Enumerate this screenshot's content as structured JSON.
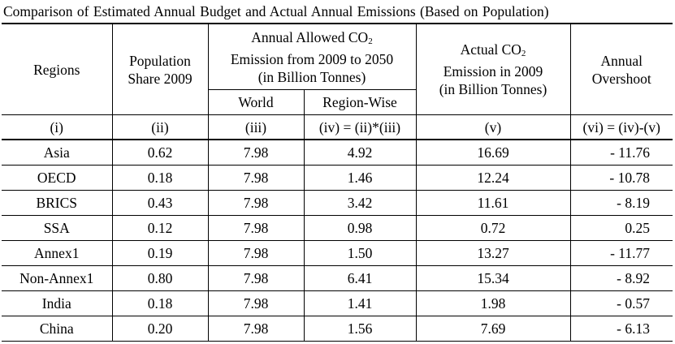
{
  "caption": "Comparison of Estimated Annual Budget and Actual Annual Emissions (Based on Population)",
  "headers": {
    "regions": "Regions",
    "population_line1": "Population",
    "population_line2": "Share 2009",
    "allowed_line1": "Annual Allowed CO",
    "allowed_sub": "2",
    "allowed_line2": "Emission from 2009 to 2050",
    "allowed_line3": "(in Billion Tonnes)",
    "world": "World",
    "region_wise": "Region-Wise",
    "actual_line1": "Actual CO",
    "actual_sub": "2",
    "actual_line2": "Emission in 2009",
    "actual_line3": "(in Billion Tonnes)",
    "overshoot_line1": "Annual",
    "overshoot_line2": "Overshoot"
  },
  "column_ids": [
    "(i)",
    "(ii)",
    "(iii)",
    "(iv) = (ii)*(iii)",
    "(v)",
    "(vi) = (iv)-(v)"
  ],
  "rows": [
    {
      "region": "Asia",
      "population_share": "0.62",
      "world": "7.98",
      "region_wise": "4.92",
      "actual": "16.69",
      "overshoot": "- 11.76"
    },
    {
      "region": "OECD",
      "population_share": "0.18",
      "world": "7.98",
      "region_wise": "1.46",
      "actual": "12.24",
      "overshoot": "- 10.78"
    },
    {
      "region": "BRICS",
      "population_share": "0.43",
      "world": "7.98",
      "region_wise": "3.42",
      "actual": "11.61",
      "overshoot": "- 8.19"
    },
    {
      "region": "SSA",
      "population_share": "0.12",
      "world": "7.98",
      "region_wise": "0.98",
      "actual": "0.72",
      "overshoot": "0.25"
    },
    {
      "region": "Annex1",
      "population_share": "0.19",
      "world": "7.98",
      "region_wise": "1.50",
      "actual": "13.27",
      "overshoot": "- 11.77"
    },
    {
      "region": "Non-Annex1",
      "population_share": "0.80",
      "world": "7.98",
      "region_wise": "6.41",
      "actual": "15.34",
      "overshoot": "- 8.92"
    },
    {
      "region": "India",
      "population_share": "0.18",
      "world": "7.98",
      "region_wise": "1.41",
      "actual": "1.98",
      "overshoot": "- 0.57"
    },
    {
      "region": "China",
      "population_share": "0.20",
      "world": "7.98",
      "region_wise": "1.56",
      "actual": "7.69",
      "overshoot": "- 6.13"
    }
  ]
}
